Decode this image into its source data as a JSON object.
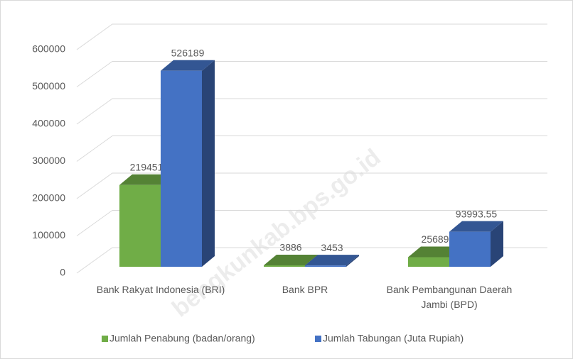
{
  "chart_data": {
    "type": "bar3d",
    "categories": [
      "Bank Rakyat Indonesia (BRI)",
      "Bank BPR",
      "Bank Pembangunan Daerah Jambi (BPD)"
    ],
    "series": [
      {
        "name": "Jumlah Penabung (badan/orang)",
        "color": "#70ad47",
        "values": [
          219451,
          3886,
          25689
        ]
      },
      {
        "name": "Jumlah Tabungan (Juta Rupiah)",
        "color": "#4472c4",
        "values": [
          526189,
          3453,
          93993.55
        ]
      }
    ],
    "ylim": [
      0,
      600000
    ],
    "yticks": [
      0,
      100000,
      200000,
      300000,
      400000,
      500000,
      600000
    ],
    "grid": true,
    "legend": "bottom",
    "watermark": "bengkunkab.bps.go.id"
  }
}
